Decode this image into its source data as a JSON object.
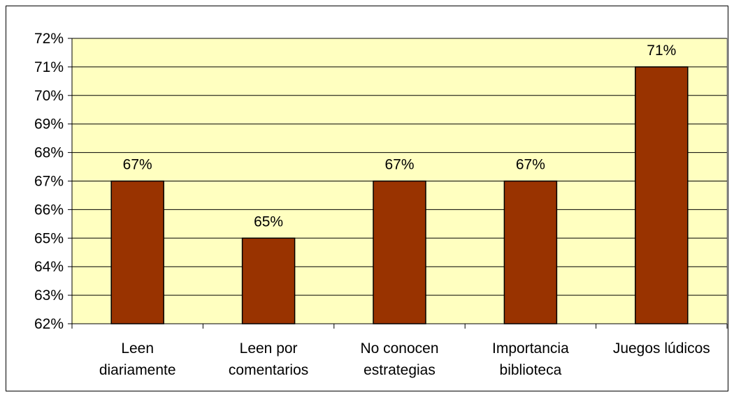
{
  "chart_data": {
    "type": "bar",
    "categories": [
      [
        "Leen",
        "diariamente"
      ],
      [
        "Leen por",
        "comentarios"
      ],
      [
        "No conocen",
        "estrategias"
      ],
      [
        "Importancia",
        "biblioteca"
      ],
      [
        "Juegos lúdicos"
      ]
    ],
    "values": [
      67,
      65,
      67,
      67,
      71
    ],
    "data_labels": [
      "67%",
      "65%",
      "67%",
      "67%",
      "71%"
    ],
    "yticks": [
      "62%",
      "63%",
      "64%",
      "65%",
      "66%",
      "67%",
      "68%",
      "69%",
      "70%",
      "71%",
      "72%"
    ],
    "ylim": [
      62,
      72
    ],
    "title": "",
    "xlabel": "",
    "ylabel": "",
    "grid": true,
    "legend": false,
    "colors": {
      "bar": "#993300",
      "plot_background": "#FFFFC0",
      "grid": "#000000"
    }
  }
}
